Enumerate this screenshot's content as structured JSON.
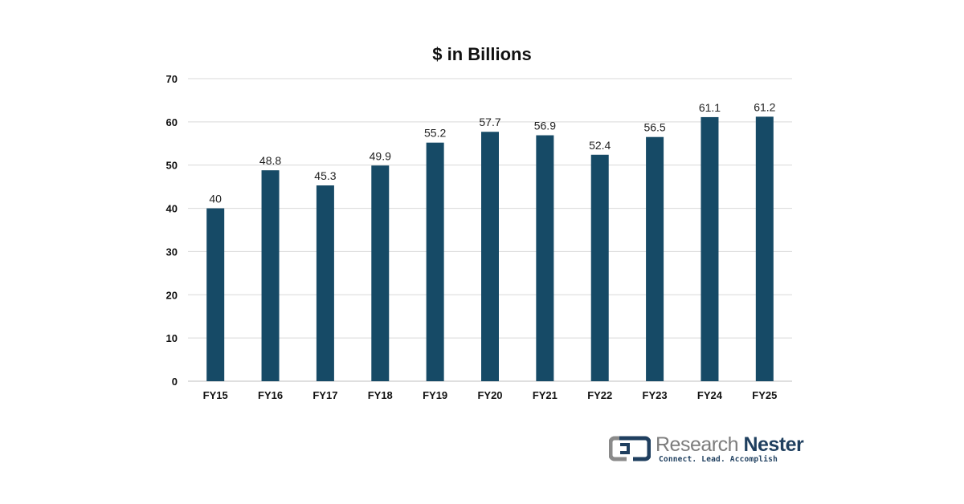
{
  "chart_data": {
    "type": "bar",
    "title": "$ in Billions",
    "xlabel": "",
    "ylabel": "",
    "categories": [
      "FY15",
      "FY16",
      "FY17",
      "FY18",
      "FY19",
      "FY20",
      "FY21",
      "FY22",
      "FY23",
      "FY24",
      "FY25"
    ],
    "values": [
      40,
      48.8,
      45.3,
      49.9,
      55.2,
      57.7,
      56.9,
      52.4,
      56.5,
      61.1,
      61.2
    ],
    "data_labels": [
      "40",
      "48.8",
      "45.3",
      "49.9",
      "55.2",
      "57.7",
      "56.9",
      "52.4",
      "56.5",
      "61.1",
      "61.2"
    ],
    "ylim": [
      0,
      70
    ],
    "yticks": [
      0,
      10,
      20,
      30,
      40,
      50,
      60,
      70
    ],
    "grid": true,
    "legend": "none",
    "bar_color": "#164a66"
  },
  "branding": {
    "name_part1": "Research ",
    "name_part2": "Nester",
    "tagline": "Connect. Lead. Accomplish",
    "logo_icon": "research-nester-logo-icon"
  }
}
